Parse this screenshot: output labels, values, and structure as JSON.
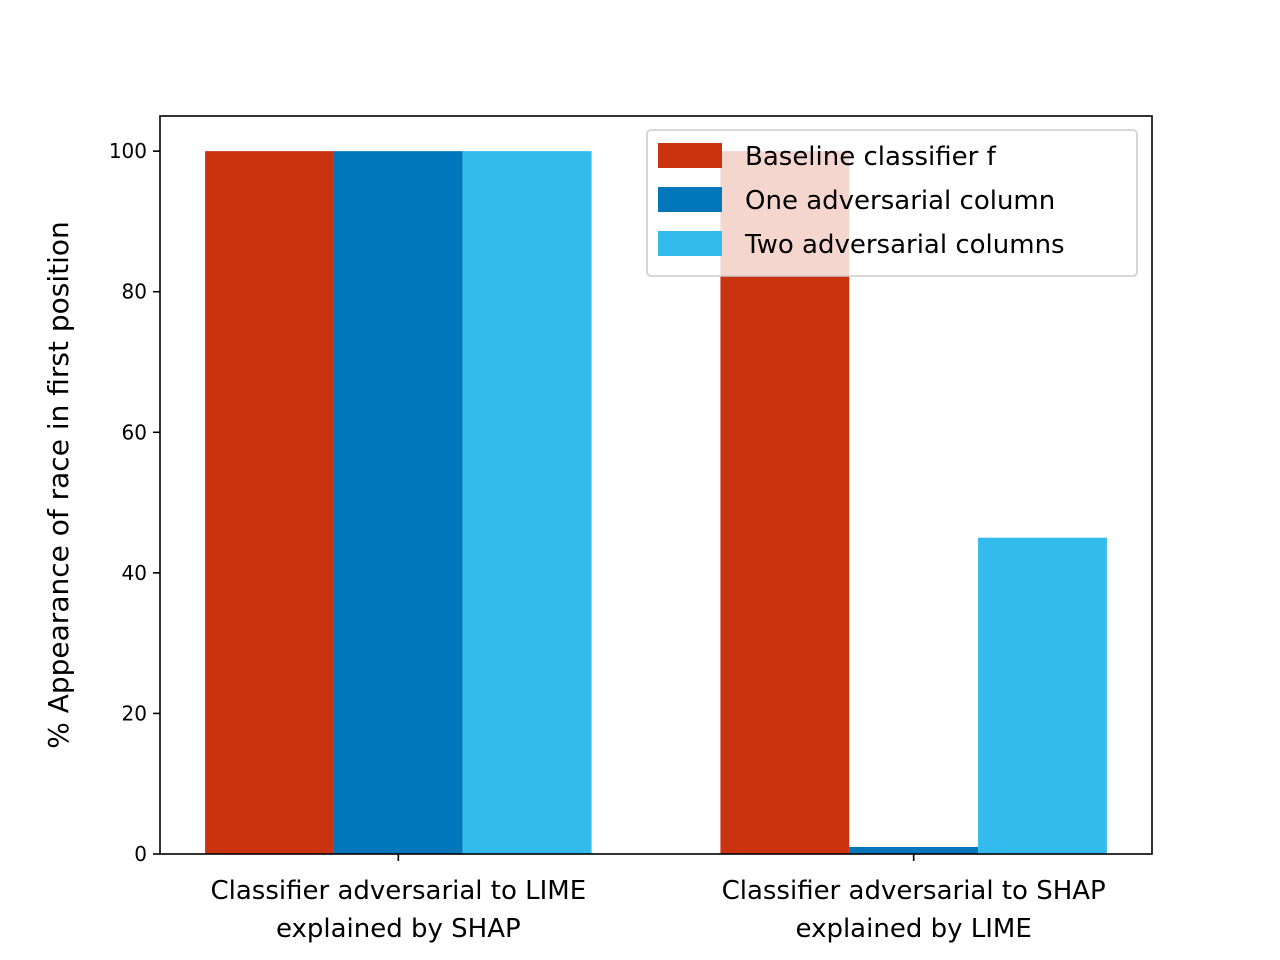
{
  "chart_data": {
    "type": "bar",
    "categories": [
      [
        "Classifier adversarial to LIME",
        "explained by SHAP"
      ],
      [
        "Classifier adversarial to SHAP",
        "explained by LIME"
      ]
    ],
    "series": [
      {
        "name": "Baseline classifier f",
        "color": "#cb3310",
        "values": [
          100,
          100
        ]
      },
      {
        "name": "One adversarial column",
        "color": "#0077bb",
        "values": [
          100,
          1
        ]
      },
      {
        "name": "Two adversarial columns",
        "color": "#33bbee",
        "values": [
          100,
          45
        ]
      }
    ],
    "ylabel": "% Appearance of race in first position",
    "xlabel": "",
    "ylim": [
      0,
      105
    ],
    "yticks": [
      0,
      20,
      40,
      60,
      80,
      100
    ],
    "legend_position": "top-right",
    "grid": false
  }
}
